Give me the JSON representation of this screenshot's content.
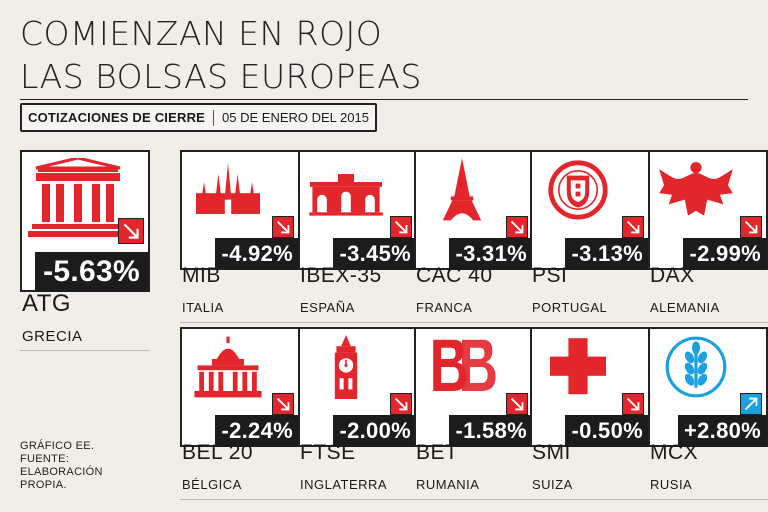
{
  "title": [
    "COMIENZAN EN ROJO",
    "LAS BOLSAS EUROPEAS"
  ],
  "subheader": {
    "label": "COTIZACIONES DE CIERRE",
    "date": "05 DE ENERO DEL 2015"
  },
  "source": [
    "GRÁFICO EE.",
    "FUENTE:",
    "ELABORACIÓN",
    "PROPIA."
  ],
  "colors": {
    "down": "#e3262b",
    "up": "#1aa1e0",
    "label_bg": "#1c1c1c"
  },
  "chart_data": {
    "type": "table",
    "title": "COMIENZAN EN ROJO LAS BOLSAS EUROPEAS",
    "subtitle": "COTIZACIONES DE CIERRE | 05 DE ENERO DEL 2015",
    "series": [
      {
        "index": "ATG",
        "country": "GRECIA",
        "change": -5.63,
        "label": "-5.63%",
        "direction": "down",
        "icon": "greek-temple-icon"
      },
      {
        "index": "MIB",
        "country": "ITALIA",
        "change": -4.92,
        "label": "-4.92%",
        "direction": "down",
        "icon": "milan-cathedral-icon"
      },
      {
        "index": "IBEX-35",
        "country": "ESPAÑA",
        "change": -3.45,
        "label": "-3.45%",
        "direction": "down",
        "icon": "puerta-de-alcala-icon"
      },
      {
        "index": "CAC 40",
        "country": "FRANCA",
        "change": -3.31,
        "label": "-3.31%",
        "direction": "down",
        "icon": "eiffel-tower-icon"
      },
      {
        "index": "PSI",
        "country": "PORTUGAL",
        "change": -3.13,
        "label": "-3.13%",
        "direction": "down",
        "icon": "portugal-coat-of-arms-icon"
      },
      {
        "index": "DAX",
        "country": "ALEMANIA",
        "change": -2.99,
        "label": "-2.99%",
        "direction": "down",
        "icon": "german-eagle-icon"
      },
      {
        "index": "BEL 20",
        "country": "BÉLGICA",
        "change": -2.24,
        "label": "-2.24%",
        "direction": "down",
        "icon": "brussels-palace-icon"
      },
      {
        "index": "FTSE",
        "country": "INGLATERRA",
        "change": -2.0,
        "label": "-2.00%",
        "direction": "down",
        "icon": "big-ben-icon"
      },
      {
        "index": "BET",
        "country": "RUMANIA",
        "change": -1.58,
        "label": "-1.58%",
        "direction": "down",
        "icon": "bet-logo-icon"
      },
      {
        "index": "SMI",
        "country": "SUIZA",
        "change": -0.5,
        "label": "-0.50%",
        "direction": "down",
        "icon": "swiss-cross-icon"
      },
      {
        "index": "MCX",
        "country": "RUSIA",
        "change": 2.8,
        "label": "+2.80%",
        "direction": "up",
        "icon": "wheat-logo-icon"
      }
    ]
  }
}
